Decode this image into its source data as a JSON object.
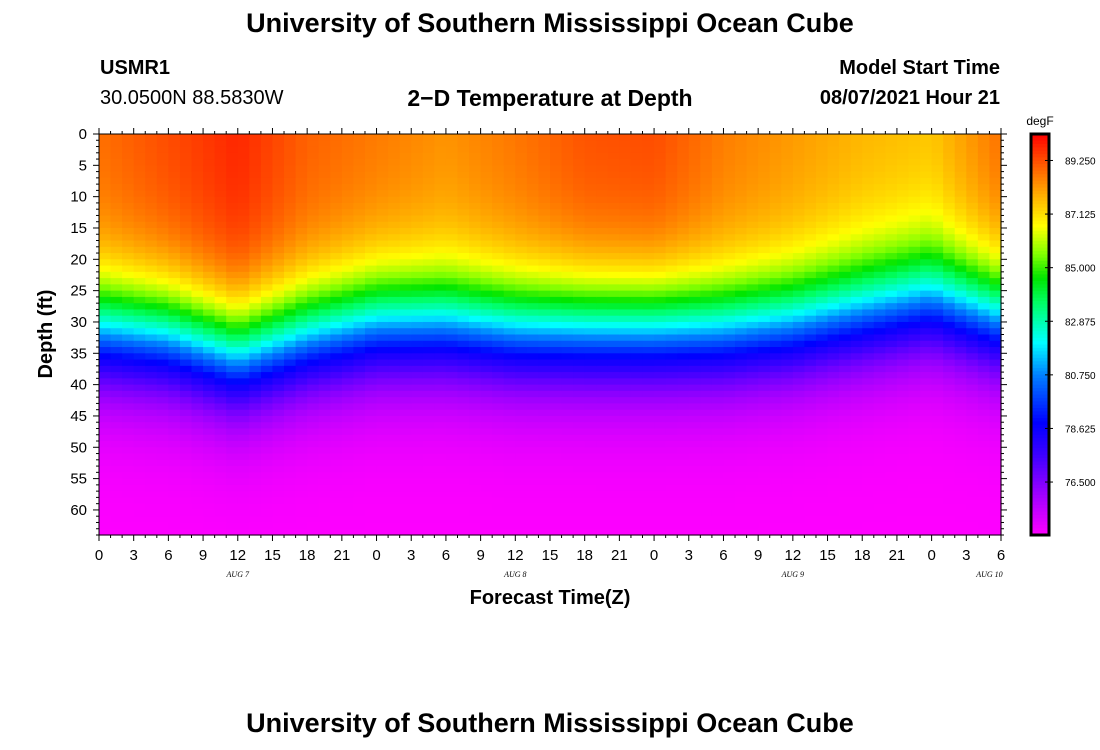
{
  "header": {
    "title": "University of Southern Mississippi Ocean Cube",
    "station": "USMR1",
    "coords": "30.0500N  88.5830W",
    "plot_title": "2−D Temperature at Depth",
    "model_label": "Model Start Time",
    "model_time": "08/07/2021 Hour 21"
  },
  "footer": {
    "title": "University of Southern Mississippi Ocean Cube"
  },
  "chart_data": {
    "type": "heatmap",
    "title": "2-D Temperature at Depth",
    "xlabel": "Forecast Time(Z)",
    "ylabel": "Depth (ft)",
    "x_range_hours": [
      0,
      78
    ],
    "x_ticks": [
      "0",
      "3",
      "6",
      "9",
      "12",
      "15",
      "18",
      "21",
      "0",
      "3",
      "6",
      "9",
      "12",
      "15",
      "18",
      "21",
      "0",
      "3",
      "6",
      "9",
      "12",
      "15",
      "18",
      "21",
      "0",
      "3",
      "6"
    ],
    "day_labels": [
      {
        "label": "AUG 7",
        "hour": 12
      },
      {
        "label": "AUG 8",
        "hour": 36
      },
      {
        "label": "AUG 9",
        "hour": 60
      },
      {
        "label": "AUG 10",
        "hour": 77
      }
    ],
    "y_range": [
      0,
      64
    ],
    "y_ticks": [
      0,
      5,
      10,
      15,
      20,
      25,
      30,
      35,
      40,
      45,
      50,
      55,
      60
    ],
    "colorbar": {
      "unit": "degF",
      "min": 74.4,
      "max": 90.3,
      "labels": [
        "89.250",
        "87.125",
        "85.000",
        "82.875",
        "80.750",
        "78.625",
        "76.500"
      ]
    },
    "thermocline_depth_ft": [
      {
        "hour": 0,
        "value": 31
      },
      {
        "hour": 6,
        "value": 32
      },
      {
        "hour": 12,
        "value": 35
      },
      {
        "hour": 18,
        "value": 32
      },
      {
        "hour": 24,
        "value": 30
      },
      {
        "hour": 30,
        "value": 30
      },
      {
        "hour": 36,
        "value": 31
      },
      {
        "hour": 48,
        "value": 31
      },
      {
        "hour": 54,
        "value": 31
      },
      {
        "hour": 60,
        "value": 30
      },
      {
        "hour": 66,
        "value": 28
      },
      {
        "hour": 72,
        "value": 26
      },
      {
        "hour": 78,
        "value": 29
      }
    ],
    "surface_temp_degF": [
      {
        "hour": 0,
        "value": 88.8
      },
      {
        "hour": 6,
        "value": 89.3
      },
      {
        "hour": 12,
        "value": 89.8
      },
      {
        "hour": 18,
        "value": 89.0
      },
      {
        "hour": 30,
        "value": 88.3
      },
      {
        "hour": 36,
        "value": 88.7
      },
      {
        "hour": 42,
        "value": 89.2
      },
      {
        "hour": 48,
        "value": 89.3
      },
      {
        "hour": 54,
        "value": 88.6
      },
      {
        "hour": 60,
        "value": 88.2
      },
      {
        "hour": 66,
        "value": 87.8
      },
      {
        "hour": 72,
        "value": 87.6
      },
      {
        "hour": 78,
        "value": 88.8
      }
    ],
    "bottom_temp_degF": 74.4
  }
}
